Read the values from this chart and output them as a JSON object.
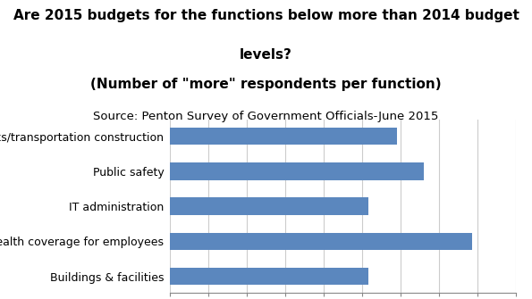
{
  "title_line1": "Are 2015 budgets for the functions below more than 2014 budget",
  "title_line2": "levels?",
  "title_line3": "(Number of \"more\" respondents per function)",
  "source_line": "Source: Penton Survey of Government Officials-June 2015",
  "categories": [
    "Buildings & facilities",
    "Health coverage for employees",
    "IT administration",
    "Public safety",
    "Public works/transportation construction"
  ],
  "values": [
    103,
    157,
    103,
    132,
    118
  ],
  "bar_color": "#5b87be",
  "xlim": [
    0,
    180
  ],
  "xticks": [
    0,
    20,
    40,
    60,
    80,
    100,
    120,
    140,
    160,
    180
  ],
  "background_color": "#ffffff",
  "title_fontsize": 11,
  "source_fontsize": 9.5,
  "tick_fontsize": 9,
  "label_fontsize": 9
}
